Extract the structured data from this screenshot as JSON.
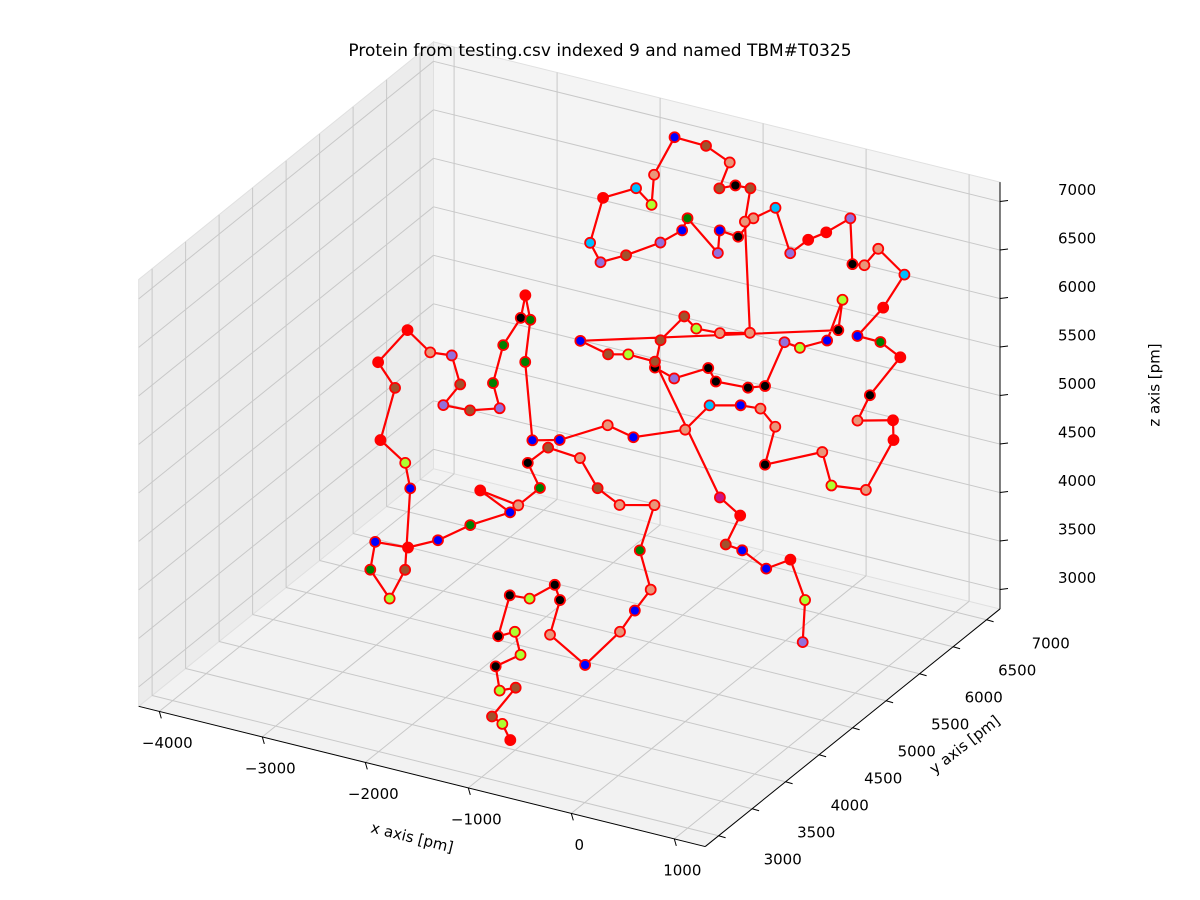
{
  "chart_data": {
    "type": "line3d",
    "title": "Protein from testing.csv indexed 9 and named TBM#T0325",
    "x_label": "x axis [pm]",
    "y_label": "y axis [pm]",
    "z_label": "z axis [pm]",
    "xlim": [
      -4200,
      1300
    ],
    "ylim": [
      2800,
      7200
    ],
    "zlim": [
      2800,
      7200
    ],
    "xticks": [
      {
        "value": -4000,
        "label": "−4000"
      },
      {
        "value": -3000,
        "label": "−3000"
      },
      {
        "value": -2000,
        "label": "−2000"
      },
      {
        "value": -1000,
        "label": "−1000"
      },
      0,
      1000
    ],
    "yticks": [
      3000,
      3500,
      4000,
      4500,
      5000,
      5500,
      6000,
      6500,
      7000
    ],
    "zticks": [
      3000,
      3500,
      4000,
      4500,
      5000,
      5500,
      6000,
      6500,
      7000
    ],
    "grid": true,
    "line_color": "#ff0000",
    "marker_edge_color": "#ff0000",
    "x": [
      -950,
      -1060,
      -1160,
      -1080,
      -1190,
      -1300,
      -1150,
      -1270,
      -1380,
      -1430,
      -1270,
      -1130,
      -1040,
      -1000,
      -640,
      -490,
      -450,
      -400,
      -610,
      -650,
      -910,
      -1130,
      -1360,
      -1630,
      -1730,
      -1560,
      -1660,
      -1990,
      -1700,
      -1950,
      -2140,
      -2340,
      -2600,
      -2550,
      -2310,
      -2290,
      -2520,
      -2640,
      -2900,
      -2960,
      -3170,
      -3060,
      -2820,
      -2650,
      -2490,
      -2550,
      -2330,
      -2120,
      -2250,
      -2300,
      -2260,
      -2300,
      -2180,
      -2080,
      -1770,
      -1570,
      -1260,
      -1030,
      -670,
      -570,
      -340,
      -180,
      -10,
      40,
      420,
      600,
      870,
      910,
      840,
      580,
      590,
      690,
      490,
      300,
      400,
      450,
      170,
      120,
      30,
      -140,
      -270,
      -380,
      -470,
      -730,
      -860,
      -910,
      -1070,
      -1010,
      -1350,
      -1350,
      -1470,
      -1680,
      -1850,
      -1990,
      -2040,
      -1830,
      -1660,
      -1740,
      -1710,
      -1450,
      -1220,
      -1210,
      -1100,
      -980,
      -910,
      -510,
      -730,
      -920,
      -1050,
      -1150,
      -1100,
      -920,
      -700,
      -600,
      -340,
      -220,
      -220,
      -90,
      90,
      70,
      140,
      -1740,
      -1490,
      -1340,
      -1120,
      -190,
      20,
      10,
      150,
      390,
      540,
      780,
      900
    ],
    "y": [
      3350,
      3400,
      3400,
      3630,
      3560,
      3670,
      3810,
      3910,
      3830,
      4080,
      4130,
      4290,
      4230,
      4020,
      3990,
      4280,
      4440,
      4600,
      4760,
      5040,
      4920,
      4930,
      5020,
      4960,
      4810,
      4730,
      4560,
      4500,
      4500,
      4290,
      4100,
      3960,
      3870,
      3720,
      3640,
      3840,
      4270,
      4380,
      4410,
      4720,
      4790,
      5060,
      5030,
      5090,
      4970,
      4810,
      4870,
      4990,
      5090,
      5320,
      5520,
      5650,
      5540,
      5310,
      4940,
      5040,
      5280,
      5310,
      5530,
      5740,
      5850,
      5900,
      5860,
      5630,
      5900,
      5760,
      5860,
      6210,
      6310,
      6180,
      6350,
      6650,
      6660,
      6610,
      6840,
      7080,
      7120,
      6990,
      6950,
      7180,
      7020,
      6920,
      6790,
      6970,
      6840,
      6690,
      6660,
      6540,
      6610,
      6530,
      6390,
      6200,
      6080,
      6140,
      6410,
      6580,
      6550,
      6710,
      6970,
      7040,
      7040,
      6870,
      6940,
      6980,
      6790,
      6250,
      6140,
      6080,
      6100,
      5900,
      5740,
      5750,
      5920,
      5880,
      5960,
      6030,
      6320,
      6350,
      6480,
      6740,
      6570,
      5610,
      5640,
      5710,
      5770,
      5310,
      5290,
      5090,
      5120,
      5110,
      5240,
      5090,
      4870
    ],
    "z": [
      3000,
      3110,
      3160,
      3350,
      3330,
      3490,
      3570,
      3720,
      3690,
      3960,
      3940,
      4030,
      3930,
      3700,
      3500,
      3720,
      3860,
      4000,
      4260,
      4560,
      4560,
      4670,
      4870,
      4940,
      4840,
      4670,
      4560,
      4660,
      4510,
      4430,
      4330,
      4280,
      4320,
      4130,
      3940,
      4130,
      4670,
      4840,
      4990,
      5340,
      5510,
      5720,
      5570,
      5550,
      5360,
      5220,
      5190,
      5200,
      5370,
      5620,
      5800,
      5950,
      5790,
      5510,
      4990,
      4990,
      5090,
      5010,
      5060,
      5220,
      5220,
      5200,
      5080,
      4830,
      4910,
      4690,
      4660,
      4990,
      5120,
      5120,
      5290,
      5540,
      5640,
      5680,
      5870,
      6090,
      6260,
      6150,
      6160,
      6460,
      6370,
      6320,
      6230,
      6530,
      6460,
      6340,
      6380,
      6230,
      6460,
      6380,
      6300,
      6220,
      6170,
      6300,
      6600,
      6660,
      6550,
      6750,
      7000,
      6940,
      6830,
      6660,
      6680,
      6660,
      6440,
      5700,
      5700,
      5730,
      5810,
      5650,
      5470,
      5400,
      5470,
      5380,
      5340,
      5350,
      5640,
      5600,
      5650,
      5920,
      5720,
      5650,
      5560,
      5560,
      5510,
      4610,
      4490,
      4300,
      4260,
      4140,
      4200,
      3930,
      3650
    ],
    "colors": [
      "#ff0000",
      "#adff2f",
      "#a0522d",
      "#a0522d",
      "#adff2f",
      "#000000",
      "#adff2f",
      "#adff2f",
      "#000000",
      "#000000",
      "#adff2f",
      "#000000",
      "#000000",
      "#e9967a",
      "#0000ff",
      "#e9967a",
      "#0000ff",
      "#e9967a",
      "#008000",
      "#e9967a",
      "#e9967a",
      "#a0522d",
      "#e9967a",
      "#a0522d",
      "#000000",
      "#008000",
      "#e9967a",
      "#ff0000",
      "#0000ff",
      "#008000",
      "#0000ff",
      "#ff0000",
      "#0000ff",
      "#008000",
      "#adff2f",
      "#a0522d",
      "#0000ff",
      "#adff2f",
      "#ff0000",
      "#a0522d",
      "#ff0000",
      "#ff0000",
      "#e9967a",
      "#9370db",
      "#a0522d",
      "#9370db",
      "#a0522d",
      "#9370db",
      "#008000",
      "#008000",
      "#000000",
      "#ff0000",
      "#008000",
      "#008000",
      "#0000ff",
      "#0000ff",
      "#e9967a",
      "#0000ff",
      "#e9967a",
      "#00bfff",
      "#0000ff",
      "#e9967a",
      "#e9967a",
      "#000000",
      "#e9967a",
      "#adff2f",
      "#e9967a",
      "#ff0000",
      "#ff0000",
      "#e9967a",
      "#000000",
      "#ff0000",
      "#008000",
      "#0000ff",
      "#ff0000",
      "#00bfff",
      "#e9967a",
      "#e9967a",
      "#000000",
      "#9370db",
      "#ff0000",
      "#ff0000",
      "#9370db",
      "#00bfff",
      "#e9967a",
      "#000000",
      "#0000ff",
      "#9370db",
      "#008000",
      "#0000ff",
      "#9370db",
      "#a0522d",
      "#9370db",
      "#00bfff",
      "#ff0000",
      "#00bfff",
      "#adff2f",
      "#e9967a",
      "#0000ff",
      "#a0522d",
      "#e9967a",
      "#a0522d",
      "#000000",
      "#a0522d",
      "#e9967a",
      "#e9967a",
      "#e9967a",
      "#adff2f",
      "#a0522d",
      "#a0522d",
      "#000000",
      "#9370db",
      "#000000",
      "#000000",
      "#000000",
      "#000000",
      "#9370db",
      "#adff2f",
      "#0000ff",
      "#adff2f",
      "#000000",
      "#0000ff",
      "#a0522d",
      "#adff2f",
      "#a0522d",
      "#c71585",
      "#ff0000",
      "#a0522d",
      "#0000ff",
      "#0000ff",
      "#ff0000",
      "#adff2f",
      "#9370db"
    ]
  }
}
